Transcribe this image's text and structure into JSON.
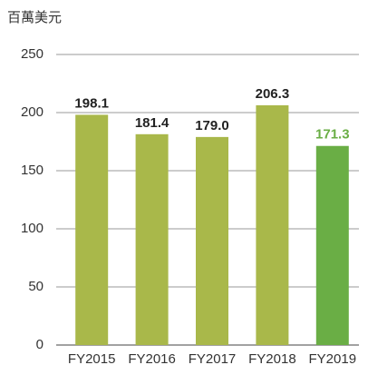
{
  "chart_data": {
    "type": "bar",
    "y_label": "百萬美元",
    "categories": [
      "FY2015",
      "FY2016",
      "FY2017",
      "FY2018",
      "FY2019"
    ],
    "values": [
      198.1,
      181.4,
      179.0,
      206.3,
      171.3
    ],
    "value_labels": [
      "198.1",
      "181.4",
      "179.0",
      "206.3",
      "171.3"
    ],
    "colors": [
      "#a9b84a",
      "#a9b84a",
      "#a9b84a",
      "#a9b84a",
      "#6aae45"
    ],
    "label_colors": [
      "#222222",
      "#222222",
      "#222222",
      "#222222",
      "#6aae45"
    ],
    "ylim": [
      0,
      250
    ],
    "yticks": [
      0,
      50,
      100,
      150,
      200,
      250
    ],
    "grid": true
  }
}
